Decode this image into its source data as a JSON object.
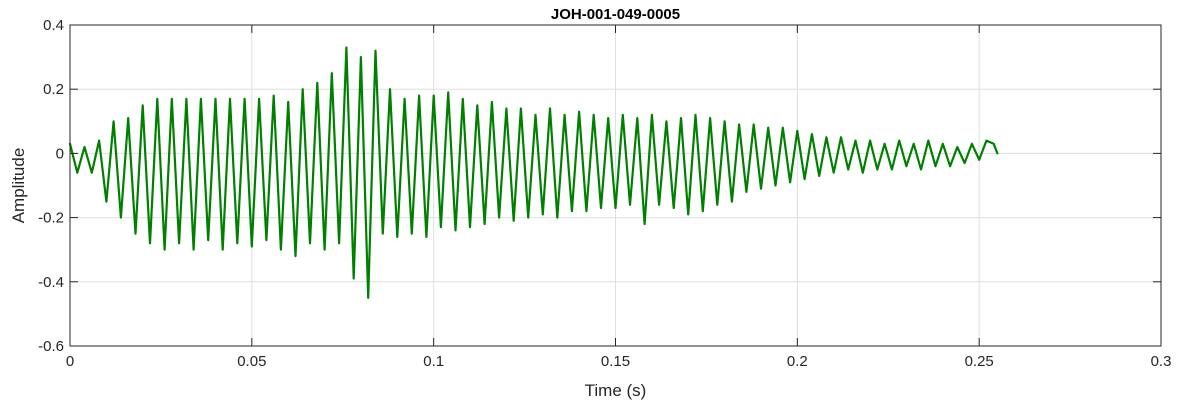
{
  "chart_data": {
    "type": "line",
    "title": "JOH-001-049-0005",
    "xlabel": "Time (s)",
    "ylabel": "Amplitude",
    "xlim": [
      0,
      0.3
    ],
    "ylim": [
      -0.6,
      0.4
    ],
    "grid": true,
    "legend": "none",
    "xticks": [
      0,
      0.05,
      0.1,
      0.15,
      0.2,
      0.25,
      0.3
    ],
    "xtick_labels": [
      "0",
      "0.05",
      "0.1",
      "0.15",
      "0.2",
      "0.25",
      "0.3"
    ],
    "yticks": [
      -0.6,
      -0.4,
      -0.2,
      0,
      0.2,
      0.4
    ],
    "ytick_labels": [
      "-0.6",
      "-0.4",
      "-0.2",
      "0",
      "0.2",
      "0.4"
    ],
    "colors": {
      "series": "#008000",
      "grid": "#dfdfdf",
      "axes": "#262626"
    },
    "series": [
      {
        "x": [
          0,
          0.002,
          0.004,
          0.006,
          0.008,
          0.01,
          0.012,
          0.014,
          0.016,
          0.018,
          0.02,
          0.022,
          0.024,
          0.026,
          0.028,
          0.03,
          0.032,
          0.034,
          0.036,
          0.038,
          0.04,
          0.042,
          0.044,
          0.046,
          0.048,
          0.05,
          0.052,
          0.054,
          0.056,
          0.058,
          0.06,
          0.062,
          0.064,
          0.066,
          0.068,
          0.07,
          0.072,
          0.074,
          0.076,
          0.078,
          0.08,
          0.082,
          0.084,
          0.086,
          0.088,
          0.09,
          0.092,
          0.094,
          0.096,
          0.098,
          0.1,
          0.102,
          0.104,
          0.106,
          0.108,
          0.11,
          0.112,
          0.114,
          0.116,
          0.118,
          0.12,
          0.122,
          0.124,
          0.126,
          0.128,
          0.13,
          0.132,
          0.134,
          0.136,
          0.138,
          0.14,
          0.142,
          0.144,
          0.146,
          0.148,
          0.15,
          0.152,
          0.154,
          0.156,
          0.158,
          0.16,
          0.162,
          0.164,
          0.166,
          0.168,
          0.17,
          0.172,
          0.174,
          0.176,
          0.178,
          0.18,
          0.182,
          0.184,
          0.186,
          0.188,
          0.19,
          0.192,
          0.194,
          0.196,
          0.198,
          0.2,
          0.202,
          0.204,
          0.206,
          0.208,
          0.21,
          0.212,
          0.214,
          0.216,
          0.218,
          0.22,
          0.222,
          0.224,
          0.226,
          0.228,
          0.23,
          0.232,
          0.234,
          0.236,
          0.238,
          0.24,
          0.242,
          0.244,
          0.246,
          0.248,
          0.25,
          0.252,
          0.254,
          0.255
        ],
        "y": [
          0.03,
          -0.06,
          0.02,
          -0.06,
          0.04,
          -0.15,
          0.1,
          -0.2,
          0.11,
          -0.25,
          0.15,
          -0.28,
          0.17,
          -0.3,
          0.17,
          -0.28,
          0.17,
          -0.3,
          0.17,
          -0.27,
          0.17,
          -0.3,
          0.17,
          -0.28,
          0.17,
          -0.29,
          0.17,
          -0.27,
          0.18,
          -0.3,
          0.16,
          -0.32,
          0.2,
          -0.28,
          0.22,
          -0.3,
          0.25,
          -0.28,
          0.33,
          -0.39,
          0.3,
          -0.45,
          0.32,
          -0.25,
          0.2,
          -0.26,
          0.17,
          -0.25,
          0.18,
          -0.26,
          0.18,
          -0.23,
          0.19,
          -0.24,
          0.17,
          -0.23,
          0.15,
          -0.22,
          0.16,
          -0.2,
          0.14,
          -0.21,
          0.14,
          -0.2,
          0.12,
          -0.19,
          0.14,
          -0.2,
          0.12,
          -0.18,
          0.13,
          -0.18,
          0.12,
          -0.17,
          0.11,
          -0.17,
          0.12,
          -0.16,
          0.11,
          -0.22,
          0.12,
          -0.16,
          0.1,
          -0.17,
          0.11,
          -0.19,
          0.12,
          -0.18,
          0.11,
          -0.16,
          0.1,
          -0.15,
          0.09,
          -0.12,
          0.09,
          -0.11,
          0.08,
          -0.1,
          0.08,
          -0.09,
          0.07,
          -0.08,
          0.06,
          -0.07,
          0.05,
          -0.06,
          0.05,
          -0.05,
          0.04,
          -0.06,
          0.04,
          -0.05,
          0.03,
          -0.05,
          0.04,
          -0.04,
          0.03,
          -0.05,
          0.04,
          -0.04,
          0.03,
          -0.04,
          0.02,
          -0.03,
          0.03,
          -0.02,
          0.04,
          0.03,
          0.0
        ]
      }
    ]
  }
}
